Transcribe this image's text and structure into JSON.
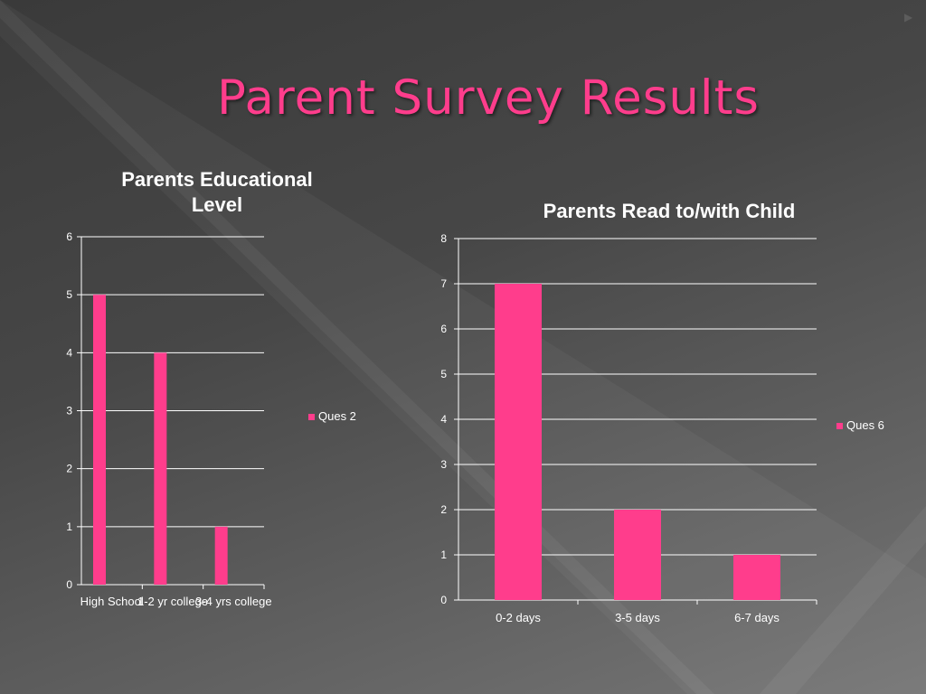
{
  "slide": {
    "title": "Parent Survey Results",
    "bullet_icon": "triangle-right-icon",
    "accent_color": "#ff3d8c"
  },
  "chart_data": [
    {
      "type": "bar",
      "title": "Parents Educational Level",
      "categories": [
        "High School",
        "1-2 yr college",
        "3-4 yrs college"
      ],
      "series": [
        {
          "name": "Ques 2",
          "values": [
            5,
            4,
            1
          ],
          "color": "#ff3d8c"
        }
      ],
      "ylim": [
        0,
        6
      ],
      "yticks": [
        0,
        1,
        2,
        3,
        4,
        5,
        6
      ],
      "grid": true,
      "legend": "right"
    },
    {
      "type": "bar",
      "title": "Parents Read to/with Child",
      "categories": [
        "0-2 days",
        "3-5 days",
        "6-7 days"
      ],
      "series": [
        {
          "name": "Ques 6",
          "values": [
            7,
            2,
            1
          ],
          "color": "#ff3d8c"
        }
      ],
      "ylim": [
        0,
        8
      ],
      "yticks": [
        0,
        1,
        2,
        3,
        4,
        5,
        6,
        7,
        8
      ],
      "grid": true,
      "legend": "right"
    }
  ]
}
